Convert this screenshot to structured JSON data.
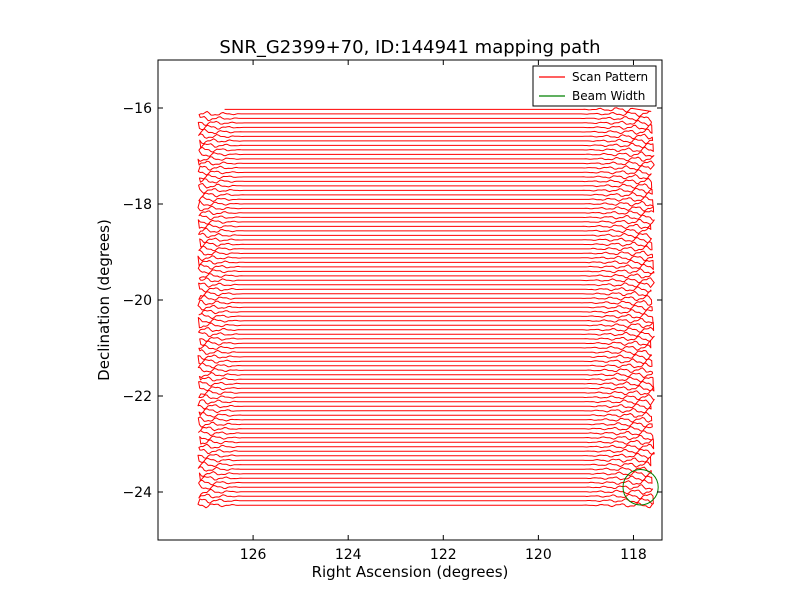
{
  "chart_data": {
    "type": "line",
    "title": "SNR_G2399+70, ID:144941 mapping path",
    "xlabel": "Right Ascension (degrees)",
    "ylabel": "Declination (degrees)",
    "xlim": [
      128.0,
      117.4
    ],
    "ylim": [
      -25.0,
      -15.0
    ],
    "x_inverted": true,
    "xticks": [
      126,
      124,
      122,
      120,
      118
    ],
    "yticks": [
      -16,
      -18,
      -20,
      -22,
      -24
    ],
    "xtick_labels": [
      "126",
      "124",
      "122",
      "120",
      "118"
    ],
    "ytick_labels": [
      "−16",
      "−18",
      "−20",
      "−22",
      "−24"
    ],
    "grid": false,
    "legend_position": "top-right",
    "series": [
      {
        "name": "Scan Pattern",
        "color": "#ff0000",
        "kind": "raster",
        "dec_start": -16.03,
        "dec_end": -24.28,
        "dec_step": 0.0937,
        "ra_left": 127.2,
        "ra_right": 117.6,
        "ra_top_row_left": 126.6
      },
      {
        "name": "Beam Width",
        "color": "#008000",
        "kind": "circle",
        "center_ra": 117.85,
        "center_dec": -23.9,
        "radius_deg": 0.37
      }
    ]
  }
}
